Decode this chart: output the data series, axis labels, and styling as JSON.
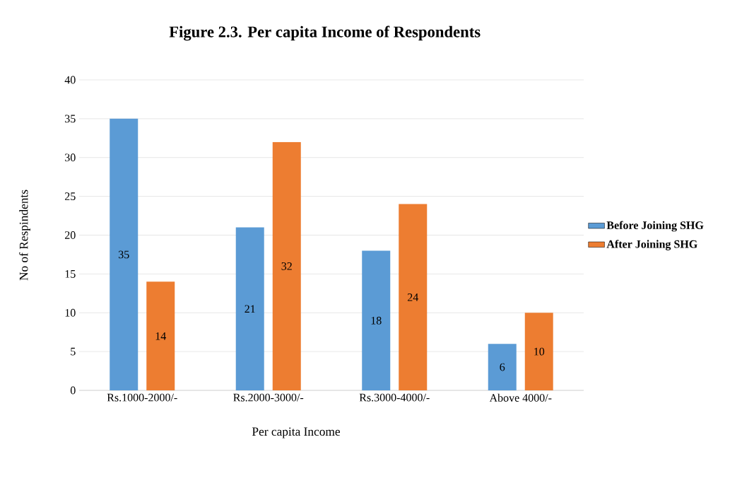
{
  "chart_data": {
    "type": "bar",
    "title": "Figure 2.3. Per capita Income of Respondents",
    "xlabel": "Per capita Income",
    "ylabel": "No of Respindents",
    "categories": [
      "Rs.1000-2000/-",
      "Rs.2000-3000/-",
      "Rs.3000-4000/-",
      "Above 4000/-"
    ],
    "series": [
      {
        "name": "Before Joining SHG",
        "color": "#5b9bd5",
        "values": [
          35,
          21,
          18,
          6
        ]
      },
      {
        "name": "After Joining SHG",
        "color": "#ed7d31",
        "values": [
          14,
          32,
          24,
          10
        ]
      }
    ],
    "ylim": [
      0,
      40
    ],
    "yticks": [
      0,
      5,
      10,
      15,
      20,
      25,
      30,
      35,
      40
    ],
    "grid": "y",
    "legend": "right",
    "data_labels": true
  }
}
